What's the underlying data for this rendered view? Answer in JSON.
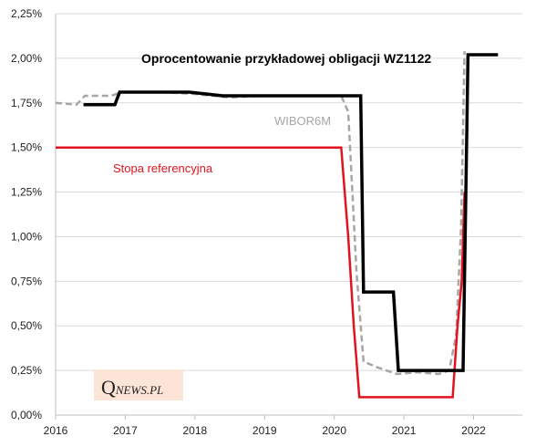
{
  "chart_data": {
    "type": "line",
    "title": "Oprocentowanie przykładowej obligacji WZ1122",
    "xlabel": "",
    "ylabel": "",
    "xlim": [
      2016.0,
      2022.7
    ],
    "ylim": [
      0,
      2.25
    ],
    "x_ticks": [
      "2016",
      "2017",
      "2018",
      "2019",
      "2020",
      "2021",
      "2022"
    ],
    "y_ticks": [
      "0,00%",
      "0,25%",
      "0,50%",
      "0,75%",
      "1,00%",
      "1,25%",
      "1,50%",
      "1,75%",
      "2,00%",
      "2,25%"
    ],
    "grid": "horizontal",
    "series": [
      {
        "label": "Oprocentowanie przykładowej obligacji WZ1122",
        "color": "#000000",
        "style": "solid",
        "points": [
          [
            2016.4,
            1.74
          ],
          [
            2016.85,
            1.74
          ],
          [
            2016.92,
            1.81
          ],
          [
            2017.4,
            1.81
          ],
          [
            2017.92,
            1.81
          ],
          [
            2018.4,
            1.79
          ],
          [
            2018.92,
            1.79
          ],
          [
            2019.4,
            1.79
          ],
          [
            2019.92,
            1.79
          ],
          [
            2020.38,
            1.79
          ],
          [
            2020.42,
            0.69
          ],
          [
            2020.85,
            0.69
          ],
          [
            2020.92,
            0.25
          ],
          [
            2021.4,
            0.25
          ],
          [
            2021.85,
            0.25
          ],
          [
            2021.92,
            2.02
          ],
          [
            2022.35,
            2.02
          ]
        ]
      },
      {
        "label": "WIBOR6M",
        "color": "#a6a6a6",
        "style": "dashed",
        "points": [
          [
            2016.0,
            1.75
          ],
          [
            2016.3,
            1.74
          ],
          [
            2016.42,
            1.79
          ],
          [
            2016.8,
            1.79
          ],
          [
            2016.95,
            1.81
          ],
          [
            2017.5,
            1.81
          ],
          [
            2018.0,
            1.8
          ],
          [
            2018.5,
            1.78
          ],
          [
            2019.0,
            1.79
          ],
          [
            2019.5,
            1.79
          ],
          [
            2020.1,
            1.79
          ],
          [
            2020.2,
            1.7
          ],
          [
            2020.32,
            0.8
          ],
          [
            2020.42,
            0.3
          ],
          [
            2020.6,
            0.27
          ],
          [
            2020.9,
            0.23
          ],
          [
            2021.2,
            0.24
          ],
          [
            2021.5,
            0.23
          ],
          [
            2021.65,
            0.25
          ],
          [
            2021.75,
            0.45
          ],
          [
            2021.82,
            1.05
          ],
          [
            2021.87,
            2.04
          ]
        ]
      },
      {
        "label": "Stopa referencyjna",
        "color": "#e0141e",
        "style": "solid",
        "points": [
          [
            2016.0,
            1.5
          ],
          [
            2020.1,
            1.5
          ],
          [
            2020.2,
            1.0
          ],
          [
            2020.28,
            0.5
          ],
          [
            2020.36,
            0.1
          ],
          [
            2021.7,
            0.1
          ],
          [
            2021.77,
            0.5
          ],
          [
            2021.83,
            0.75
          ],
          [
            2021.87,
            1.25
          ]
        ]
      }
    ],
    "annotations": {
      "title": "Oprocentowanie przykładowej obligacji WZ1122",
      "wibor": "WIBOR6M",
      "stopa": "Stopa referencyjna"
    },
    "logo": {
      "q": "Q",
      "rest": "NEWS.PL"
    }
  }
}
